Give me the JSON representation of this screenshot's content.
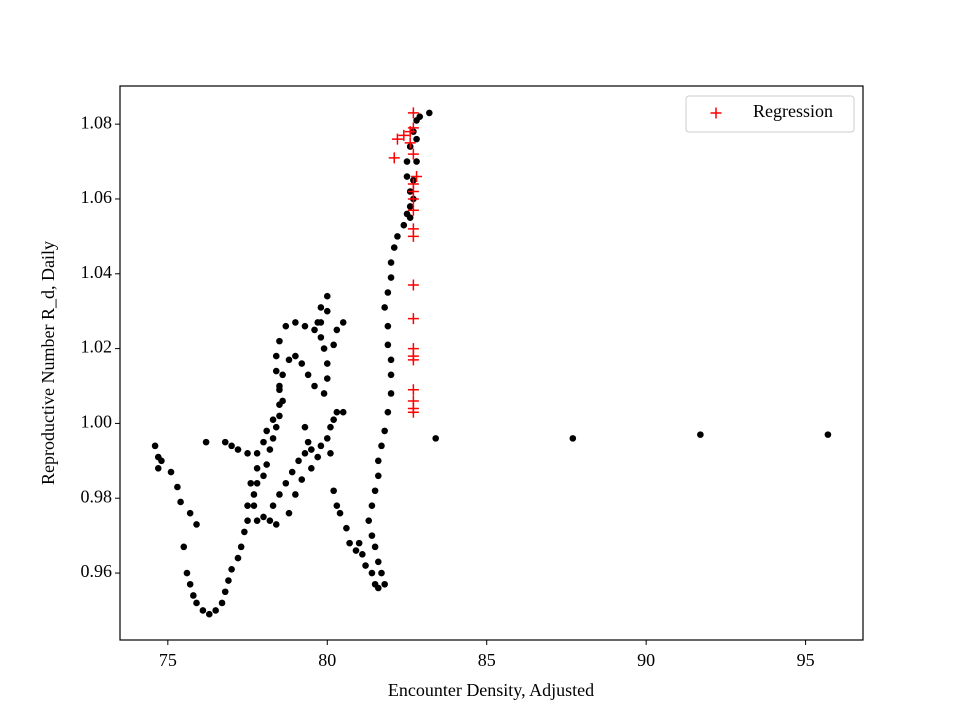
{
  "chart_data": {
    "type": "scatter",
    "xlabel": "Encounter Density, Adjusted",
    "ylabel": "Reproductive Number R_d, Daily",
    "xlim": [
      73.5,
      96.8
    ],
    "xticks": [
      75,
      80,
      85,
      90,
      95
    ],
    "ylim": [
      0.9421,
      1.0902
    ],
    "yticks": [
      0.96,
      0.98,
      {
        "value": 1,
        "label": "1.00"
      },
      1.02,
      1.04,
      1.06,
      1.08
    ],
    "legend": "upper right",
    "grid": false,
    "series": [
      {
        "color": "#000000",
        "marker": "circle",
        "x": [
          74.6,
          74.7,
          74.7,
          74.8,
          75.1,
          75.3,
          75.4,
          75.7,
          75.9,
          75.5,
          75.6,
          75.7,
          75.8,
          75.9,
          76.1,
          76.3,
          76.5,
          76.7,
          76.8,
          76.9,
          77.0,
          77.2,
          77.3,
          77.4,
          77.5,
          77.5,
          77.7,
          77.8,
          78.0,
          78.1,
          78.2,
          78.3,
          78.4,
          78.5,
          78.6,
          78.5,
          78.4,
          78.4,
          78.5,
          78.7,
          79.0,
          79.3,
          79.6,
          79.8,
          80.0,
          80.0,
          79.8,
          79.7,
          79.8,
          79.9,
          80.0,
          80.0,
          79.9,
          79.6,
          79.4,
          79.2,
          79.0,
          78.8,
          78.6,
          78.5,
          78.5,
          78.3,
          78.1,
          78.0,
          77.8,
          77.5,
          77.2,
          77.0,
          76.8,
          77.8,
          77.6,
          77.7,
          77.8,
          78.0,
          78.2,
          78.4,
          78.3,
          78.5,
          78.7,
          78.9,
          79.1,
          79.3,
          79.5,
          79.7,
          79.8,
          80.0,
          80.1,
          80.3,
          80.5,
          80.2,
          80.1,
          80.2,
          80.3,
          80.4,
          80.6,
          80.7,
          80.9,
          81.0,
          81.1,
          81.2,
          81.4,
          81.5,
          81.6,
          81.8,
          81.7,
          81.6,
          81.5,
          81.4,
          81.3,
          81.4,
          81.5,
          81.6,
          81.6,
          81.7,
          81.8,
          81.9,
          82.0,
          82.0,
          82.0,
          81.9,
          81.9,
          81.8,
          81.9,
          82.0,
          82.0,
          82.1,
          82.2,
          82.4,
          82.5,
          82.6,
          82.6,
          82.6,
          82.5,
          82.5,
          82.6,
          82.7,
          82.8,
          82.9,
          83.2,
          82.8,
          82.8,
          82.7,
          82.7,
          80.5,
          80.3,
          80.2,
          79.3,
          79.4,
          79.5,
          79.2,
          79.0,
          78.8,
          76.2,
          83.4,
          87.7,
          91.7,
          95.7
        ],
        "values": [
          0.994,
          0.991,
          0.988,
          0.99,
          0.987,
          0.983,
          0.979,
          0.976,
          0.973,
          0.967,
          0.96,
          0.957,
          0.954,
          0.952,
          0.95,
          0.949,
          0.95,
          0.952,
          0.955,
          0.958,
          0.961,
          0.964,
          0.967,
          0.971,
          0.974,
          0.978,
          0.981,
          0.984,
          0.986,
          0.989,
          0.993,
          0.996,
          0.999,
          1.002,
          1.006,
          1.01,
          1.014,
          1.018,
          1.022,
          1.026,
          1.027,
          1.026,
          1.025,
          1.027,
          1.03,
          1.034,
          1.031,
          1.027,
          1.023,
          1.02,
          1.016,
          1.012,
          1.008,
          1.01,
          1.013,
          1.016,
          1.018,
          1.017,
          1.013,
          1.009,
          1.005,
          1.001,
          0.998,
          0.995,
          0.992,
          0.992,
          0.993,
          0.994,
          0.995,
          0.988,
          0.984,
          0.978,
          0.974,
          0.975,
          0.974,
          0.973,
          0.978,
          0.981,
          0.984,
          0.987,
          0.99,
          0.992,
          0.993,
          0.991,
          0.994,
          0.996,
          0.999,
          1.003,
          1.003,
          1.001,
          0.992,
          0.982,
          0.978,
          0.976,
          0.972,
          0.968,
          0.966,
          0.968,
          0.965,
          0.962,
          0.96,
          0.957,
          0.956,
          0.957,
          0.96,
          0.963,
          0.967,
          0.97,
          0.974,
          0.978,
          0.982,
          0.986,
          0.99,
          0.994,
          0.998,
          1.003,
          1.008,
          1.013,
          1.017,
          1.021,
          1.026,
          1.031,
          1.035,
          1.039,
          1.043,
          1.047,
          1.05,
          1.053,
          1.056,
          1.055,
          1.058,
          1.062,
          1.066,
          1.07,
          1.074,
          1.078,
          1.081,
          1.082,
          1.083,
          1.076,
          1.07,
          1.065,
          1.06,
          1.027,
          1.025,
          1.021,
          0.999,
          0.995,
          0.988,
          0.985,
          0.981,
          0.976,
          0.995,
          0.996,
          0.996,
          0.997,
          0.997
        ]
      },
      {
        "name": "Regression",
        "color": "#ff0000",
        "marker": "plus",
        "x": [
          82.7,
          82.7,
          82.4,
          82.2,
          82.6,
          82.7,
          82.1,
          82.8,
          82.7,
          82.7,
          82.7,
          82.7,
          82.7,
          82.7,
          82.7,
          82.7,
          82.7,
          82.7,
          82.7,
          82.7,
          82.7,
          82.7,
          82.7,
          82.6
        ],
        "values": [
          1.083,
          1.079,
          1.077,
          1.076,
          1.075,
          1.072,
          1.071,
          1.066,
          1.064,
          1.062,
          1.06,
          1.057,
          1.052,
          1.05,
          1.037,
          1.028,
          1.02,
          1.018,
          1.017,
          1.009,
          1.006,
          1.004,
          1.003,
          1.078
        ]
      }
    ]
  }
}
